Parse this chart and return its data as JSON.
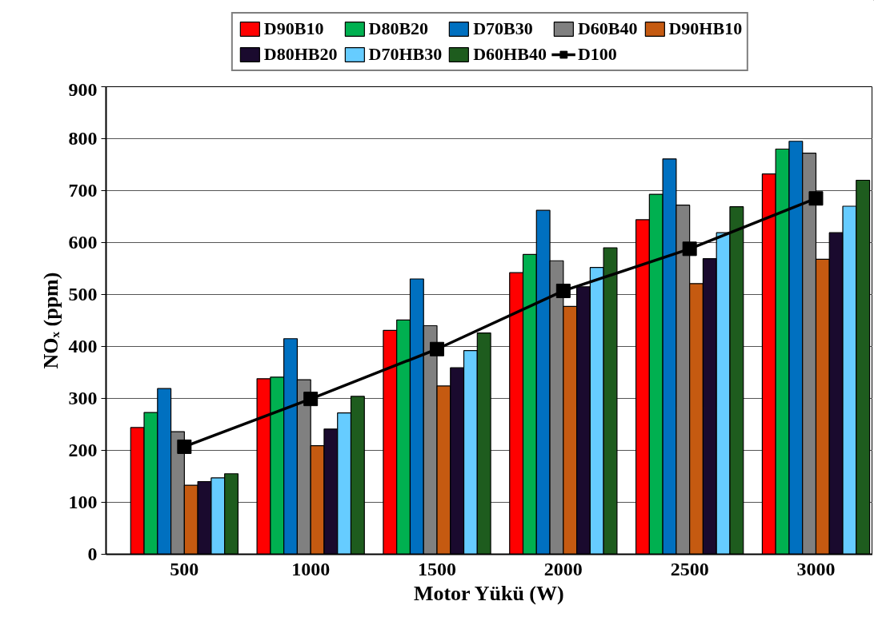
{
  "chart_data": {
    "type": "bar",
    "xlabel": "Motor Yükü (W)",
    "ylabel": "NOₓ (ppm)",
    "categories": [
      "500",
      "1000",
      "1500",
      "2000",
      "2500",
      "3000"
    ],
    "series": [
      {
        "name": "D90B10",
        "color": "#ff0000",
        "values": [
          244,
          338,
          431,
          542,
          644,
          732
        ]
      },
      {
        "name": "D80B20",
        "color": "#00b050",
        "values": [
          273,
          341,
          451,
          577,
          693,
          780
        ]
      },
      {
        "name": "D70B30",
        "color": "#0070c0",
        "values": [
          319,
          415,
          530,
          662,
          761,
          795
        ]
      },
      {
        "name": "D60B40",
        "color": "#808080",
        "values": [
          236,
          336,
          440,
          565,
          672,
          772
        ]
      },
      {
        "name": "D90HB10",
        "color": "#c55a11",
        "values": [
          133,
          209,
          324,
          477,
          521,
          568
        ]
      },
      {
        "name": "D80HB20",
        "color": "#1a0a2e",
        "values": [
          140,
          241,
          359,
          515,
          569,
          619
        ]
      },
      {
        "name": "D70HB30",
        "color": "#66ccff",
        "values": [
          147,
          272,
          392,
          552,
          619,
          670
        ]
      },
      {
        "name": "D60HB40",
        "color": "#1e5c1e",
        "values": [
          155,
          304,
          426,
          590,
          669,
          720
        ]
      },
      {
        "name": "D100",
        "type": "line",
        "color": "#000000",
        "marker": "square",
        "values": [
          207,
          299,
          395,
          507,
          588,
          685
        ]
      }
    ],
    "ylim": [
      0,
      900
    ],
    "yticks": [
      0,
      100,
      200,
      300,
      400,
      500,
      600,
      700,
      800,
      900
    ],
    "grid": "y",
    "legend": "top"
  }
}
